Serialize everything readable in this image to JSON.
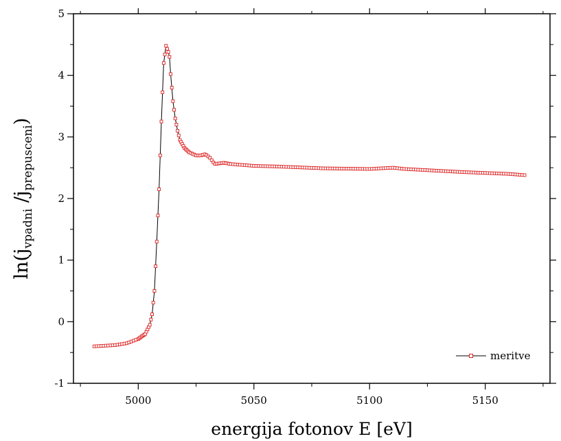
{
  "chart_data": {
    "type": "line",
    "title": "",
    "xlabel": "energija fotonov E [eV]",
    "ylabel_parts": {
      "pre": "ln(j",
      "sub1": "vpadni",
      "mid": " /j",
      "sub2": "prepusceni",
      "post": ")"
    },
    "xlim": [
      4972,
      5178
    ],
    "ylim": [
      -1,
      5
    ],
    "xticks": [
      5000,
      5050,
      5100,
      5150
    ],
    "xtick_labels": [
      "5000",
      "5050",
      "5100",
      "5150"
    ],
    "yticks": [
      -1,
      0,
      1,
      2,
      3,
      4,
      5
    ],
    "ytick_labels": [
      "-1",
      "0",
      "1",
      "2",
      "3",
      "4",
      "5"
    ],
    "grid": false,
    "legend_position": "bottom-right",
    "line_color": "#000000",
    "marker_color": "#dd2222",
    "series": [
      {
        "name": "meritve",
        "x": [
          4981,
          4990,
          4995,
          5000,
          5003,
          5005,
          5006,
          5007,
          5008,
          5009,
          5010,
          5011,
          5012,
          5013,
          5013.5,
          5014,
          5015,
          5016,
          5017,
          5018,
          5020,
          5022,
          5025,
          5027,
          5029,
          5031,
          5033,
          5035,
          5037,
          5040,
          5050,
          5060,
          5080,
          5100,
          5105,
          5110,
          5115,
          5120,
          5140,
          5160,
          5167
        ],
        "y": [
          -0.4,
          -0.38,
          -0.35,
          -0.28,
          -0.2,
          -0.05,
          0.12,
          0.5,
          1.3,
          2.15,
          3.25,
          4.2,
          4.48,
          4.38,
          4.3,
          4.02,
          3.58,
          3.3,
          3.1,
          2.95,
          2.82,
          2.75,
          2.7,
          2.7,
          2.72,
          2.66,
          2.56,
          2.57,
          2.58,
          2.56,
          2.53,
          2.52,
          2.49,
          2.48,
          2.49,
          2.5,
          2.48,
          2.47,
          2.43,
          2.4,
          2.38
        ]
      }
    ]
  }
}
